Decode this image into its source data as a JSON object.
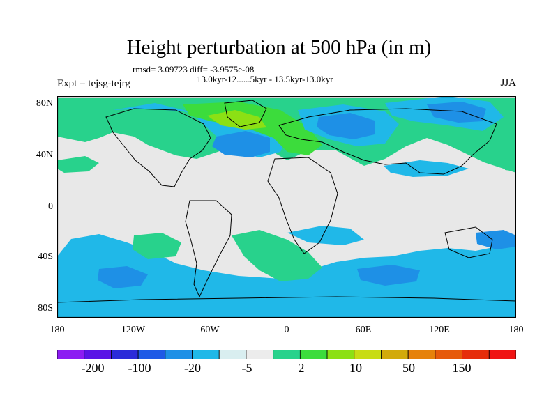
{
  "title": "Height perturbation at 500 hPa (in m)",
  "stats_text": "rmsd= 3.09723 diff= -3.9575e-08",
  "period_text": "13.0kyr-12......5kyr - 13.5kyr-13.0kyr",
  "expt_text": "Expt = tejsg-tejrg",
  "season": "JJA",
  "lat_labels": [
    "80N",
    "40N",
    "0",
    "40S",
    "80S"
  ],
  "lon_labels": [
    "180",
    "120W",
    "60W",
    "0",
    "60E",
    "120E",
    "180"
  ],
  "colorbar": {
    "labels": [
      "-200",
      "-100",
      "-20",
      "-5",
      "2",
      "10",
      "50",
      "150"
    ],
    "colors": [
      "#8c1cf2",
      "#5a14e6",
      "#2b2bd9",
      "#1e5ae6",
      "#1e90e6",
      "#20b8e8",
      "#d9eef0",
      "#ececec",
      "#28d28c",
      "#3cdc3c",
      "#8ce014",
      "#c8dc14",
      "#d2aa0a",
      "#e6820a",
      "#e65a0a",
      "#e62d0a",
      "#f01414"
    ]
  },
  "map": {
    "background_color": "#e8e8e8",
    "field_colors": {
      "strong_negative": "#1e90e6",
      "negative": "#20b8e8",
      "positive": "#28d28c",
      "strong_positive": "#3cdc3c",
      "peak_positive": "#8ce014"
    }
  }
}
